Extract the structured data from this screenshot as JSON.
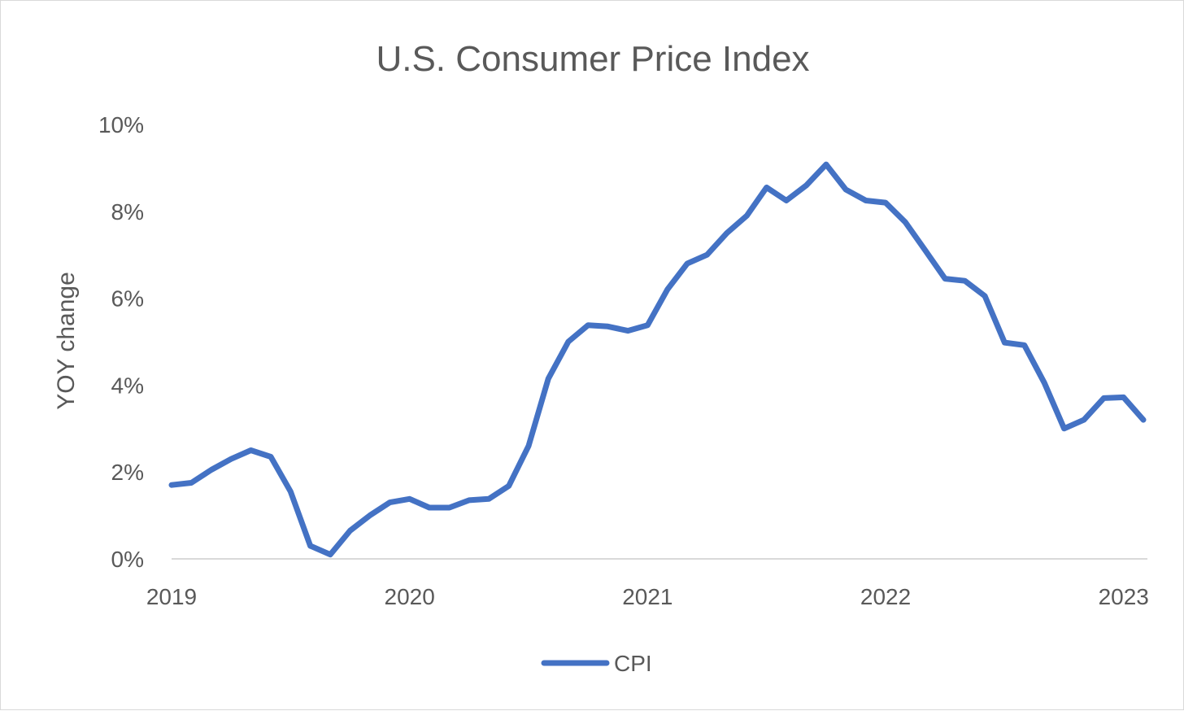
{
  "chart_data": {
    "type": "line",
    "title": "U.S. Consumer Price Index",
    "xlabel": "",
    "ylabel": "YOY change",
    "ylim": [
      0,
      10
    ],
    "yticks": [
      0,
      2,
      4,
      6,
      8,
      10
    ],
    "ytick_labels": [
      "0%",
      "2%",
      "4%",
      "6%",
      "8%",
      "10%"
    ],
    "xlim": [
      2019,
      2023.1
    ],
    "xtick_labels": [
      "2019",
      "2020",
      "2021",
      "2022",
      "2023"
    ],
    "xtick_values": [
      2019,
      2020,
      2021,
      2022,
      2023
    ],
    "legend": {
      "position": "bottom-center"
    },
    "series_color": "#4472c4",
    "series": [
      {
        "name": "CPI",
        "x": [
          2019.0,
          2019.083,
          2019.167,
          2019.25,
          2019.333,
          2019.417,
          2019.5,
          2019.583,
          2019.667,
          2019.75,
          2019.833,
          2019.917,
          2020.0,
          2020.083,
          2020.167,
          2020.25,
          2020.333,
          2020.417,
          2020.5,
          2020.583,
          2020.667,
          2020.75,
          2020.833,
          2020.917,
          2021.0,
          2021.083,
          2021.167,
          2021.25,
          2021.333,
          2021.417,
          2021.5,
          2021.583,
          2021.667,
          2021.75,
          2021.833,
          2021.917,
          2022.0,
          2022.083,
          2022.167,
          2022.25,
          2022.333,
          2022.417,
          2022.5,
          2022.583,
          2022.667,
          2022.75,
          2022.833,
          2022.917,
          2023.0,
          2023.083
        ],
        "values": [
          1.7,
          1.75,
          2.05,
          2.3,
          2.5,
          2.35,
          1.55,
          0.3,
          0.1,
          0.65,
          1.0,
          1.3,
          1.38,
          1.18,
          1.18,
          1.35,
          1.38,
          1.68,
          2.6,
          4.15,
          5.0,
          5.38,
          5.35,
          5.25,
          5.38,
          6.2,
          6.8,
          7.0,
          7.5,
          7.9,
          8.55,
          8.25,
          8.6,
          9.08,
          8.5,
          8.25,
          8.2,
          7.75,
          7.1,
          6.45,
          6.4,
          6.05,
          4.98,
          4.92,
          4.05,
          3.0,
          3.2,
          3.7,
          3.72,
          3.2
        ]
      }
    ]
  }
}
